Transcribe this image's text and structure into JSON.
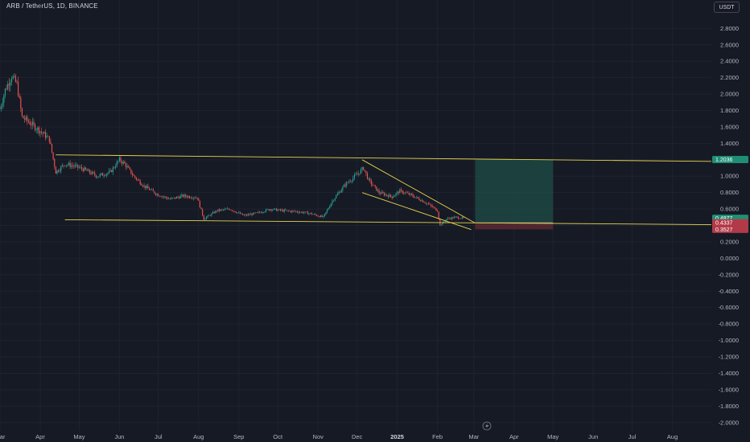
{
  "header": {
    "title": "ARB / TetherUS, 1D, BINANCE",
    "currency": "USDT"
  },
  "colors": {
    "background": "#161a25",
    "grid": "#1f2330",
    "up": "#26a69a",
    "down": "#ef5350",
    "trendline": "#e8d44d",
    "target_zone": "#1e4d45",
    "stop_zone": "#5a2a30"
  },
  "price_badges": {
    "target": "1.2036",
    "current": "0.4877",
    "countdown": "15:40:55",
    "entry": "0.4337",
    "stop": "0.3527"
  },
  "chart_data": {
    "type": "candlestick",
    "title": "ARB / TetherUS, 1D, BINANCE",
    "y_ticks": [
      "2.8000",
      "2.6000",
      "2.4000",
      "2.2000",
      "2.0000",
      "1.8000",
      "1.6000",
      "1.4000",
      "1.2000",
      "1.0000",
      "0.8000",
      "0.6000",
      "0.4000",
      "0.2000",
      "0.0000",
      "-0.2000",
      "-0.4000",
      "-0.6000",
      "-0.8000",
      "-1.0000",
      "-1.2000",
      "-1.4000",
      "-1.6000",
      "-1.8000",
      "-2.0000"
    ],
    "x_ticks": [
      "Mar",
      "Apr",
      "May",
      "Jun",
      "Jul",
      "Aug",
      "Sep",
      "Oct",
      "Nov",
      "Dec",
      "2025",
      "Feb",
      "Mar",
      "Apr",
      "May",
      "Jun",
      "Jul",
      "Aug"
    ],
    "ylim": [
      -2.1,
      2.95
    ],
    "xlim": [
      "2024-03-01",
      "2025-08-31"
    ],
    "key_prices": [
      [
        "2024-03-01",
        1.82
      ],
      [
        "2024-03-05",
        2.05
      ],
      [
        "2024-03-10",
        2.22
      ],
      [
        "2024-03-14",
        2.12
      ],
      [
        "2024-03-18",
        1.72
      ],
      [
        "2024-03-24",
        1.65
      ],
      [
        "2024-04-01",
        1.55
      ],
      [
        "2024-04-08",
        1.45
      ],
      [
        "2024-04-13",
        1.05
      ],
      [
        "2024-04-20",
        1.15
      ],
      [
        "2024-04-28",
        1.12
      ],
      [
        "2024-05-05",
        1.08
      ],
      [
        "2024-05-15",
        1.0
      ],
      [
        "2024-05-25",
        1.05
      ],
      [
        "2024-06-01",
        1.2
      ],
      [
        "2024-06-05",
        1.15
      ],
      [
        "2024-06-12",
        1.0
      ],
      [
        "2024-06-20",
        0.88
      ],
      [
        "2024-06-30",
        0.78
      ],
      [
        "2024-07-10",
        0.72
      ],
      [
        "2024-07-20",
        0.76
      ],
      [
        "2024-07-31",
        0.74
      ],
      [
        "2024-08-05",
        0.48
      ],
      [
        "2024-08-15",
        0.58
      ],
      [
        "2024-08-25",
        0.6
      ],
      [
        "2024-09-05",
        0.52
      ],
      [
        "2024-09-15",
        0.55
      ],
      [
        "2024-09-25",
        0.6
      ],
      [
        "2024-10-05",
        0.58
      ],
      [
        "2024-10-15",
        0.57
      ],
      [
        "2024-10-25",
        0.55
      ],
      [
        "2024-11-05",
        0.5
      ],
      [
        "2024-11-12",
        0.7
      ],
      [
        "2024-11-22",
        0.9
      ],
      [
        "2024-12-01",
        1.02
      ],
      [
        "2024-12-06",
        1.1
      ],
      [
        "2024-12-10",
        0.95
      ],
      [
        "2024-12-18",
        0.8
      ],
      [
        "2024-12-28",
        0.75
      ],
      [
        "2025-01-03",
        0.82
      ],
      [
        "2025-01-10",
        0.78
      ],
      [
        "2025-01-18",
        0.72
      ],
      [
        "2025-01-25",
        0.66
      ],
      [
        "2025-02-01",
        0.58
      ],
      [
        "2025-02-03",
        0.4
      ],
      [
        "2025-02-08",
        0.48
      ],
      [
        "2025-02-15",
        0.5
      ],
      [
        "2025-02-21",
        0.4877
      ]
    ],
    "trendlines": [
      {
        "from": [
          "2024-04-13",
          1.26
        ],
        "to": [
          "2025-08-31",
          1.18
        ]
      },
      {
        "from": [
          "2024-04-20",
          0.47
        ],
        "to": [
          "2025-08-31",
          0.41
        ]
      },
      {
        "from": [
          "2024-12-05",
          1.2
        ],
        "to": [
          "2025-03-02",
          0.43
        ]
      },
      {
        "from": [
          "2024-12-05",
          0.8
        ],
        "to": [
          "2025-02-27",
          0.35
        ]
      }
    ],
    "position": {
      "entry": 0.4337,
      "target": 1.2036,
      "stop": 0.3527,
      "from": "2025-03-02",
      "to": "2025-05-01"
    },
    "last_price": 0.4877,
    "grid": true
  }
}
